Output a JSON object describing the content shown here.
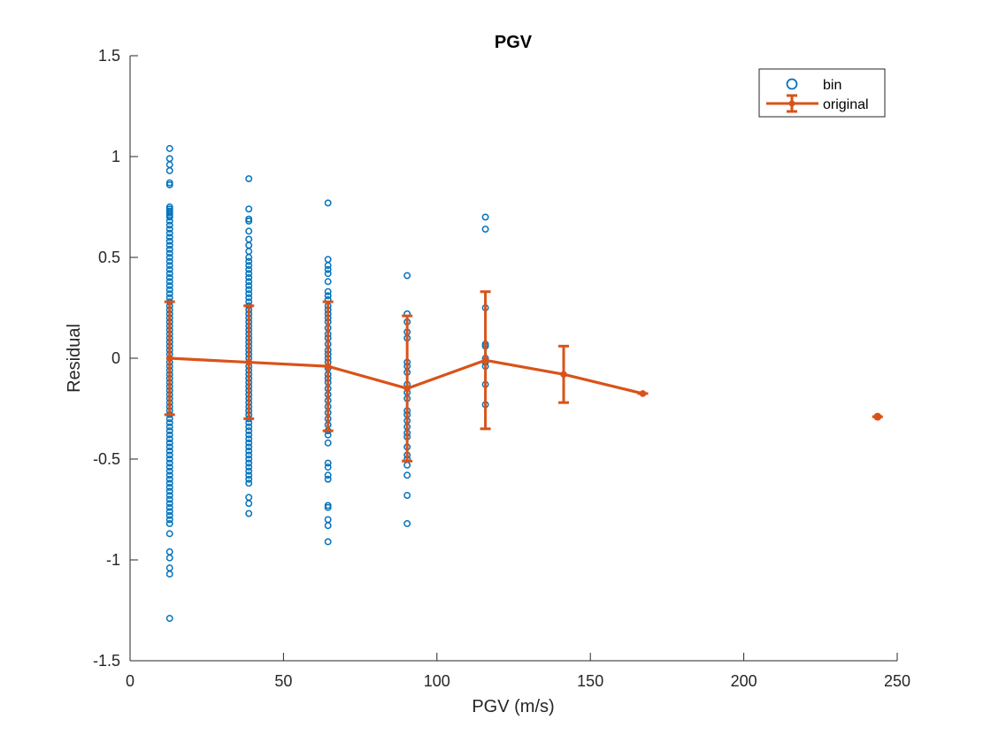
{
  "chart_data": {
    "type": "scatter",
    "title": "PGV",
    "xlabel": "PGV (m/s)",
    "ylabel": "Residual",
    "xlim": [
      0,
      250
    ],
    "ylim": [
      -1.5,
      1.5
    ],
    "xticks": [
      0,
      50,
      100,
      150,
      200,
      250
    ],
    "yticks": [
      -1.5,
      -1,
      -0.5,
      0,
      0.5,
      1,
      1.5
    ],
    "xtick_labels": [
      "0",
      "50",
      "100",
      "150",
      "200",
      "250"
    ],
    "ytick_labels": [
      "-1.5",
      "-1",
      "-0.5",
      "0",
      "0.5",
      "1",
      "1.5"
    ],
    "grid": false,
    "legend_position": "top-right",
    "series": [
      {
        "name": "bin",
        "kind": "scatter",
        "marker": "open-circle",
        "color": "#0072BD",
        "groups": [
          {
            "x": 12.9,
            "y": [
              1.04,
              0.99,
              0.96,
              0.93,
              0.87,
              0.86,
              0.75,
              0.74,
              0.73,
              0.72,
              0.71,
              0.7,
              0.68,
              0.66,
              0.64,
              0.62,
              0.6,
              0.58,
              0.56,
              0.54,
              0.52,
              0.5,
              0.48,
              0.46,
              0.44,
              0.42,
              0.4,
              0.38,
              0.36,
              0.34,
              0.32,
              0.3,
              0.28,
              0.26,
              0.24,
              0.22,
              0.2,
              0.18,
              0.16,
              0.14,
              0.12,
              0.1,
              0.08,
              0.06,
              0.04,
              0.02,
              0.0,
              -0.02,
              -0.04,
              -0.06,
              -0.08,
              -0.1,
              -0.12,
              -0.14,
              -0.16,
              -0.18,
              -0.2,
              -0.22,
              -0.24,
              -0.26,
              -0.28,
              -0.3,
              -0.32,
              -0.34,
              -0.36,
              -0.38,
              -0.4,
              -0.42,
              -0.44,
              -0.46,
              -0.48,
              -0.5,
              -0.52,
              -0.54,
              -0.56,
              -0.58,
              -0.6,
              -0.62,
              -0.64,
              -0.66,
              -0.68,
              -0.7,
              -0.72,
              -0.74,
              -0.76,
              -0.78,
              -0.8,
              -0.82,
              -0.87,
              -0.96,
              -0.99,
              -1.04,
              -1.07,
              -1.29
            ]
          },
          {
            "x": 38.7,
            "y": [
              0.89,
              0.74,
              0.69,
              0.68,
              0.63,
              0.59,
              0.56,
              0.53,
              0.5,
              0.48,
              0.46,
              0.44,
              0.42,
              0.4,
              0.38,
              0.36,
              0.34,
              0.32,
              0.3,
              0.28,
              0.26,
              0.24,
              0.22,
              0.2,
              0.18,
              0.16,
              0.14,
              0.12,
              0.1,
              0.08,
              0.06,
              0.04,
              0.02,
              0.0,
              -0.02,
              -0.04,
              -0.06,
              -0.08,
              -0.1,
              -0.12,
              -0.14,
              -0.16,
              -0.18,
              -0.2,
              -0.22,
              -0.24,
              -0.26,
              -0.28,
              -0.3,
              -0.32,
              -0.34,
              -0.36,
              -0.38,
              -0.4,
              -0.42,
              -0.44,
              -0.46,
              -0.48,
              -0.5,
              -0.52,
              -0.54,
              -0.56,
              -0.58,
              -0.6,
              -0.62,
              -0.69,
              -0.72,
              -0.77
            ]
          },
          {
            "x": 64.5,
            "y": [
              0.77,
              0.49,
              0.46,
              0.44,
              0.42,
              0.38,
              0.33,
              0.31,
              0.29,
              0.26,
              0.24,
              0.22,
              0.2,
              0.18,
              0.15,
              0.12,
              0.1,
              0.07,
              0.04,
              0.02,
              0.0,
              -0.02,
              -0.05,
              -0.08,
              -0.1,
              -0.12,
              -0.15,
              -0.18,
              -0.21,
              -0.24,
              -0.27,
              -0.3,
              -0.33,
              -0.36,
              -0.38,
              -0.42,
              -0.52,
              -0.54,
              -0.58,
              -0.6,
              -0.73,
              -0.74,
              -0.8,
              -0.83,
              -0.91
            ]
          },
          {
            "x": 90.3,
            "y": [
              0.41,
              0.22,
              0.18,
              0.13,
              0.1,
              -0.02,
              -0.04,
              -0.07,
              -0.13,
              -0.17,
              -0.2,
              -0.26,
              -0.28,
              -0.31,
              -0.34,
              -0.37,
              -0.39,
              -0.44,
              -0.48,
              -0.5,
              -0.53,
              -0.58,
              -0.68,
              -0.82
            ]
          },
          {
            "x": 115.8,
            "y": [
              0.7,
              0.64,
              0.25,
              0.07,
              0.06,
              0.0,
              -0.02,
              -0.04,
              -0.13,
              -0.23
            ]
          }
        ]
      },
      {
        "name": "original",
        "kind": "errorbar-line",
        "color": "#D95319",
        "x": [
          12.9,
          38.7,
          64.5,
          90.3,
          115.8,
          141.3,
          167.1
        ],
        "y": [
          0.0,
          -0.02,
          -0.04,
          -0.15,
          -0.01,
          -0.08,
          -0.175
        ],
        "err": [
          0.28,
          0.28,
          0.32,
          0.36,
          0.34,
          0.14,
          0.0
        ]
      },
      {
        "name": "",
        "kind": "point",
        "color": "#D95319",
        "x": [
          243.6
        ],
        "y": [
          -0.29
        ]
      }
    ]
  }
}
